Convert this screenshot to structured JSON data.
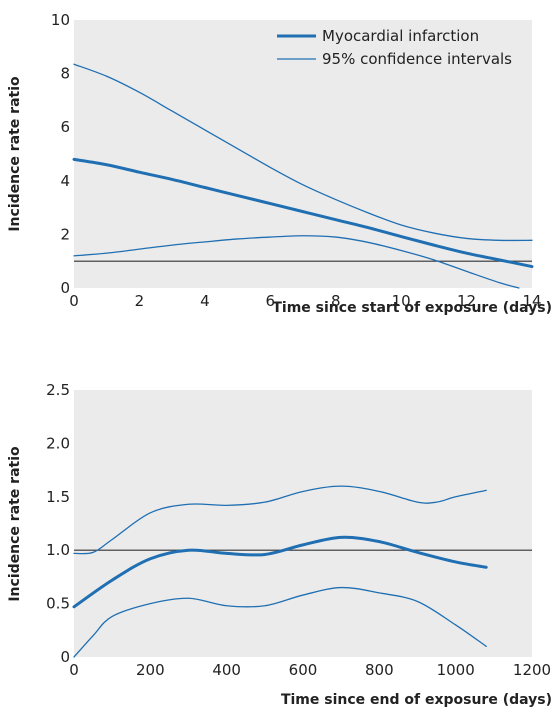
{
  "chart_data": [
    {
      "type": "line",
      "title": "",
      "xlabel": "Time since start of exposure (days)",
      "ylabel": "Incidence rate ratio",
      "xlim": [
        0,
        14
      ],
      "ylim": [
        0,
        10
      ],
      "x_ticks": [
        "0",
        "2",
        "4",
        "6",
        "8",
        "10",
        "12",
        "14"
      ],
      "y_ticks": [
        "0",
        "2",
        "4",
        "6",
        "8",
        "10"
      ],
      "grid": false,
      "legend": "top-right",
      "reference_line": 1,
      "colors": {
        "series": "#1f6fb2",
        "reference": "#333333",
        "background": "#ebebeb"
      },
      "series": [
        {
          "name": "Myocardial infarction",
          "style": "thick",
          "x": [
            0,
            1,
            2,
            3,
            4,
            5,
            6,
            7,
            8,
            9,
            10,
            11,
            12,
            13,
            14
          ],
          "values": [
            4.8,
            4.6,
            4.32,
            4.05,
            3.75,
            3.45,
            3.15,
            2.85,
            2.55,
            2.25,
            1.92,
            1.6,
            1.3,
            1.05,
            0.8
          ]
        },
        {
          "name": "95% confidence intervals",
          "style": "thin",
          "x": [
            0,
            1,
            2,
            3,
            4,
            5,
            6,
            7,
            8,
            9,
            10,
            11,
            12,
            13,
            14
          ],
          "values": [
            8.35,
            7.9,
            7.3,
            6.6,
            5.9,
            5.2,
            4.5,
            3.85,
            3.3,
            2.8,
            2.35,
            2.05,
            1.85,
            1.78,
            1.78
          ]
        },
        {
          "name": "",
          "style": "thin",
          "x": [
            0,
            1,
            2,
            3,
            4,
            5,
            6,
            7,
            8,
            9,
            10,
            11,
            12,
            13,
            13.6
          ],
          "values": [
            1.2,
            1.3,
            1.45,
            1.6,
            1.72,
            1.83,
            1.9,
            1.95,
            1.9,
            1.7,
            1.4,
            1.05,
            0.62,
            0.2,
            0.0
          ]
        }
      ]
    },
    {
      "type": "line",
      "title": "",
      "xlabel": "Time since end of exposure (days)",
      "ylabel": "Incidence rate ratio",
      "xlim": [
        0,
        1200
      ],
      "ylim": [
        0,
        2.5
      ],
      "x_ticks": [
        "0",
        "200",
        "400",
        "600",
        "800",
        "1000",
        "1200"
      ],
      "y_ticks": [
        "0",
        "0.5",
        "1.0",
        "1.5",
        "2.0",
        "2.5"
      ],
      "grid": false,
      "reference_line": 1,
      "colors": {
        "series": "#1f6fb2",
        "reference": "#333333",
        "background": "#ebebeb"
      },
      "series": [
        {
          "name": "",
          "style": "thick",
          "x": [
            0,
            100,
            200,
            300,
            400,
            500,
            600,
            700,
            800,
            900,
            1000,
            1080
          ],
          "values": [
            0.47,
            0.72,
            0.92,
            1.0,
            0.97,
            0.96,
            1.05,
            1.12,
            1.08,
            0.98,
            0.89,
            0.84
          ]
        },
        {
          "name": "",
          "style": "thin",
          "x": [
            0,
            50,
            100,
            200,
            300,
            400,
            500,
            600,
            700,
            800,
            900,
            950,
            1000,
            1080
          ],
          "values": [
            0.97,
            0.98,
            1.1,
            1.35,
            1.43,
            1.42,
            1.45,
            1.55,
            1.6,
            1.55,
            1.45,
            1.45,
            1.5,
            1.56
          ]
        },
        {
          "name": "",
          "style": "thin",
          "x": [
            0,
            50,
            100,
            200,
            300,
            400,
            500,
            600,
            700,
            800,
            900,
            1000,
            1080
          ],
          "values": [
            0.0,
            0.2,
            0.38,
            0.5,
            0.55,
            0.48,
            0.48,
            0.58,
            0.65,
            0.6,
            0.52,
            0.3,
            0.1
          ]
        }
      ]
    }
  ]
}
